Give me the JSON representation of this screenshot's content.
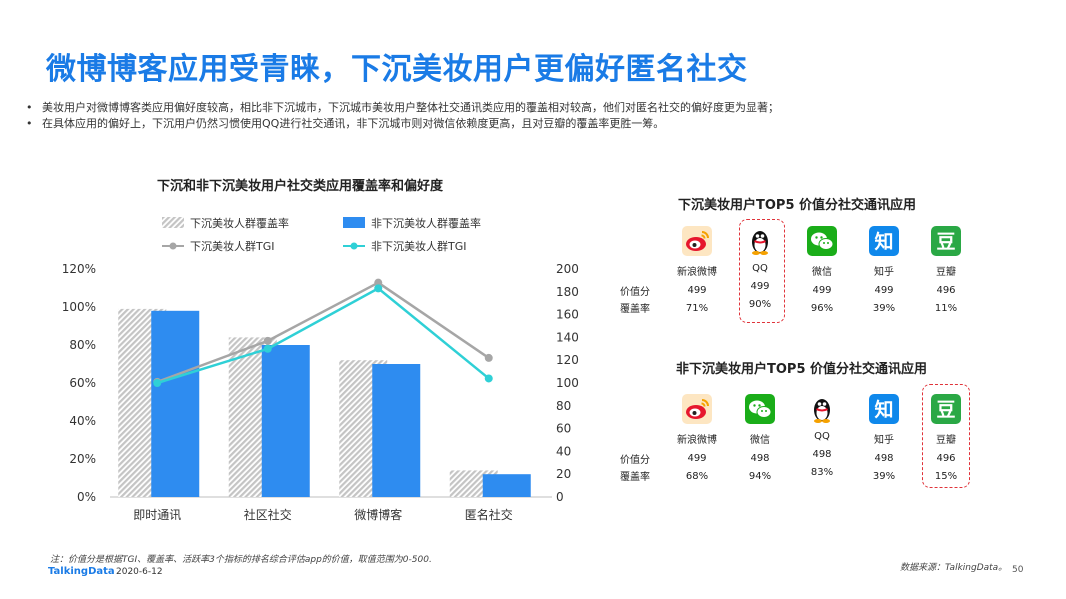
{
  "title": "微博博客应用受青睐，下沉美妆用户更偏好匿名社交",
  "bullets": [
    "美妆用户对微博博客类应用偏好度较高，相比非下沉城市，下沉城市美妆用户整体社交通讯类应用的覆盖相对较高，他们对匿名社交的偏好度更为显著；",
    "在具体应用的偏好上，下沉用户仍然习惯使用QQ进行社交通讯，非下沉城市则对微信依赖度更高，且对豆瓣的覆盖率更胜一筹。"
  ],
  "chart_data": {
    "type": "bar",
    "title": "下沉和非下沉美妆用户社交类应用覆盖率和偏好度",
    "categories": [
      "即时通讯",
      "社区社交",
      "微博博客",
      "匿名社交"
    ],
    "y_left": {
      "ticks": [
        "0%",
        "20%",
        "40%",
        "60%",
        "80%",
        "100%",
        "120%"
      ],
      "range": [
        0,
        120
      ]
    },
    "y_right": {
      "ticks": [
        "0",
        "20",
        "40",
        "60",
        "80",
        "100",
        "120",
        "140",
        "160",
        "180",
        "200"
      ],
      "range": [
        0,
        200
      ]
    },
    "series": [
      {
        "name": "下沉美妆人群覆盖率",
        "kind": "bar",
        "axis": "left",
        "color": "#c8c8c8",
        "pattern": "hatch",
        "values": [
          99,
          84,
          72,
          14
        ]
      },
      {
        "name": "非下沉美妆人群覆盖率",
        "kind": "bar",
        "axis": "left",
        "color": "#2e8cf0",
        "values": [
          98,
          80,
          70,
          12
        ]
      },
      {
        "name": "下沉美妆人群TGI",
        "kind": "line",
        "axis": "right",
        "color": "#a6a6a6",
        "values": [
          101,
          137,
          188,
          122
        ]
      },
      {
        "name": "非下沉美妆人群TGI",
        "kind": "line",
        "axis": "right",
        "color": "#2fd0d6",
        "values": [
          100,
          130,
          183,
          104
        ]
      }
    ]
  },
  "panel1": {
    "title": "下沉美妆用户TOP5 价值分社交通讯应用",
    "row_labels": {
      "value": "价值分",
      "coverage": "覆盖率"
    },
    "apps": [
      {
        "name": "新浪微博",
        "icon": "weibo-icon",
        "value": "499",
        "coverage": "71%"
      },
      {
        "name": "QQ",
        "icon": "qq-icon",
        "value": "499",
        "coverage": "90%"
      },
      {
        "name": "微信",
        "icon": "wechat-icon",
        "value": "499",
        "coverage": "96%"
      },
      {
        "name": "知乎",
        "icon": "zhihu-icon",
        "glyph": "知",
        "value": "499",
        "coverage": "39%"
      },
      {
        "name": "豆瓣",
        "icon": "douban-icon",
        "glyph": "豆",
        "value": "496",
        "coverage": "11%"
      }
    ]
  },
  "panel2": {
    "title": "非下沉美妆用户TOP5 价值分社交通讯应用",
    "row_labels": {
      "value": "价值分",
      "coverage": "覆盖率"
    },
    "apps": [
      {
        "name": "新浪微博",
        "icon": "weibo-icon",
        "value": "499",
        "coverage": "68%"
      },
      {
        "name": "微信",
        "icon": "wechat-icon",
        "value": "498",
        "coverage": "94%"
      },
      {
        "name": "QQ",
        "icon": "qq-icon",
        "value": "498",
        "coverage": "83%"
      },
      {
        "name": "知乎",
        "icon": "zhihu-icon",
        "glyph": "知",
        "value": "498",
        "coverage": "39%"
      },
      {
        "name": "豆瓣",
        "icon": "douban-icon",
        "glyph": "豆",
        "value": "496",
        "coverage": "15%"
      }
    ]
  },
  "footer": {
    "note": "注：价值分是根据TGI、覆盖率、活跃率3个指标的排名综合评估app的价值，取值范围为0-500.",
    "logo": "TalkingData",
    "date": "2020-6-12",
    "source": "数据来源：TalkingData。",
    "page": "50"
  }
}
